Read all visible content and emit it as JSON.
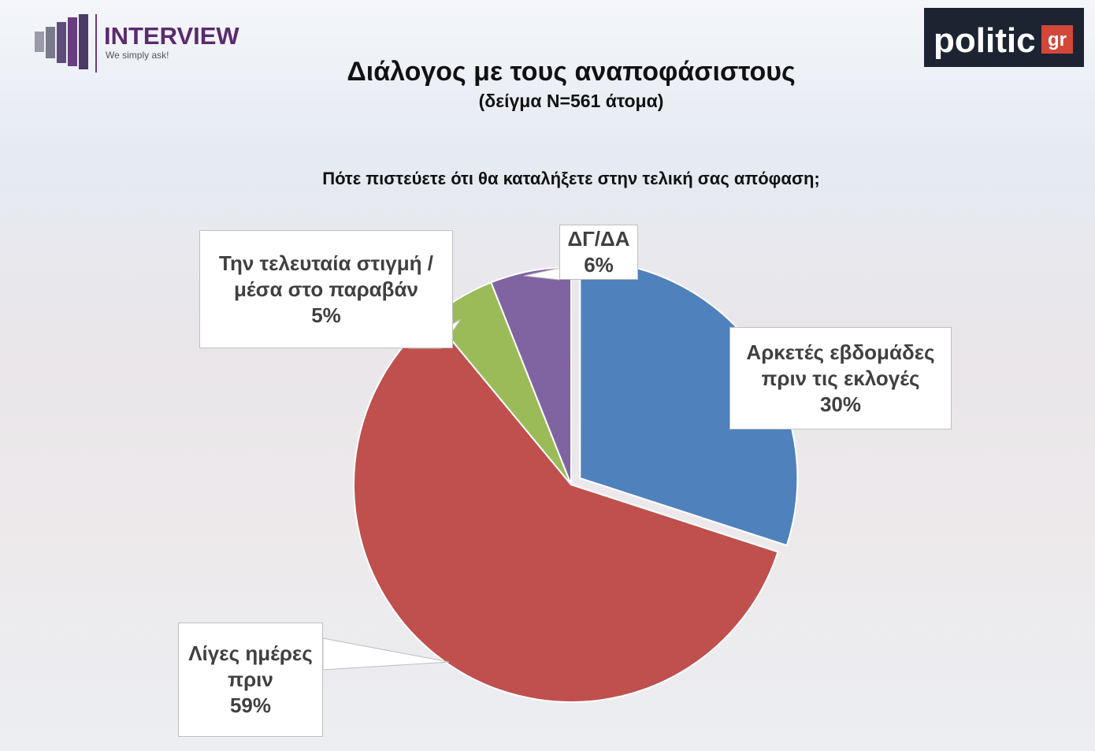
{
  "header": {
    "brand": "INTERVIEW",
    "tagline": "We simply ask!",
    "partner": "politic",
    "partner_suffix": "gr"
  },
  "chart_data": {
    "type": "pie",
    "title": "Διάλογος με τους αναποφάσιστους",
    "subtitle": "(δείγμα N=561 άτομα)",
    "annotations": [
      "Πότε πιστεύετε ότι θα καταλήξετε στην τελική σας απόφαση;"
    ],
    "categories": [
      "Αρκετές εβδομάδες πριν τις εκλογές",
      "Λίγες ημέρες πριν",
      "Την τελευταία στιγμή / μέσα στο παραβάν",
      "ΔΓ/ΔΑ"
    ],
    "values": [
      30,
      59,
      5,
      6
    ],
    "value_labels": [
      "30%",
      "59%",
      "5%",
      "6%"
    ],
    "colors": [
      "#4f81bd",
      "#c0504d",
      "#9bbb59",
      "#8064a2"
    ]
  }
}
